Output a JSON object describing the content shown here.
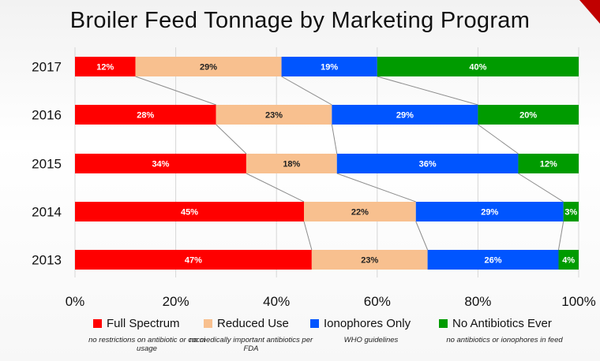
{
  "title": "Broiler Feed Tonnage by Marketing Program",
  "chart_data": {
    "type": "bar",
    "orientation": "horizontal",
    "stacked": "percent",
    "title": "Broiler Feed Tonnage by Marketing Program",
    "categories": [
      "2017",
      "2016",
      "2015",
      "2014",
      "2013"
    ],
    "series": [
      {
        "name": "Full Spectrum",
        "color": "#ff0000",
        "values": [
          12,
          28,
          34,
          45,
          47
        ],
        "labels": [
          "12%",
          "28%",
          "34%",
          "45%",
          "47%"
        ]
      },
      {
        "name": "Reduced Use",
        "color": "#f8c08f",
        "values": [
          29,
          23,
          18,
          22,
          23
        ],
        "labels": [
          "29%",
          "23%",
          "18%",
          "22%",
          "23%"
        ]
      },
      {
        "name": "Ionophores Only",
        "color": "#0055ff",
        "values": [
          19,
          29,
          36,
          29,
          26
        ],
        "labels": [
          "19%",
          "29%",
          "36%",
          "29%",
          "26%"
        ]
      },
      {
        "name": "No Antibiotics Ever",
        "color": "#009b00",
        "values": [
          40,
          20,
          12,
          3,
          4
        ],
        "labels": [
          "40%",
          "20%",
          "12%",
          "3%",
          "4%"
        ]
      }
    ],
    "xlim": [
      0,
      100
    ],
    "x_ticks": [
      "0%",
      "20%",
      "40%",
      "60%",
      "80%",
      "100%"
    ],
    "grid": true,
    "series_lines": true,
    "legend_position": "bottom",
    "legend_notes": [
      "no restrictions on antibiotic or cocci usage",
      "no medically important antibiotics per FDA",
      "WHO guidelines",
      "no antibiotics or ionophores in feed"
    ]
  },
  "colors": {
    "full_spectrum": "#ff0000",
    "reduced_use": "#f8c08f",
    "ionophores_only": "#0055ff",
    "no_antibiotics_ever": "#009b00",
    "accent": "#c00000"
  }
}
